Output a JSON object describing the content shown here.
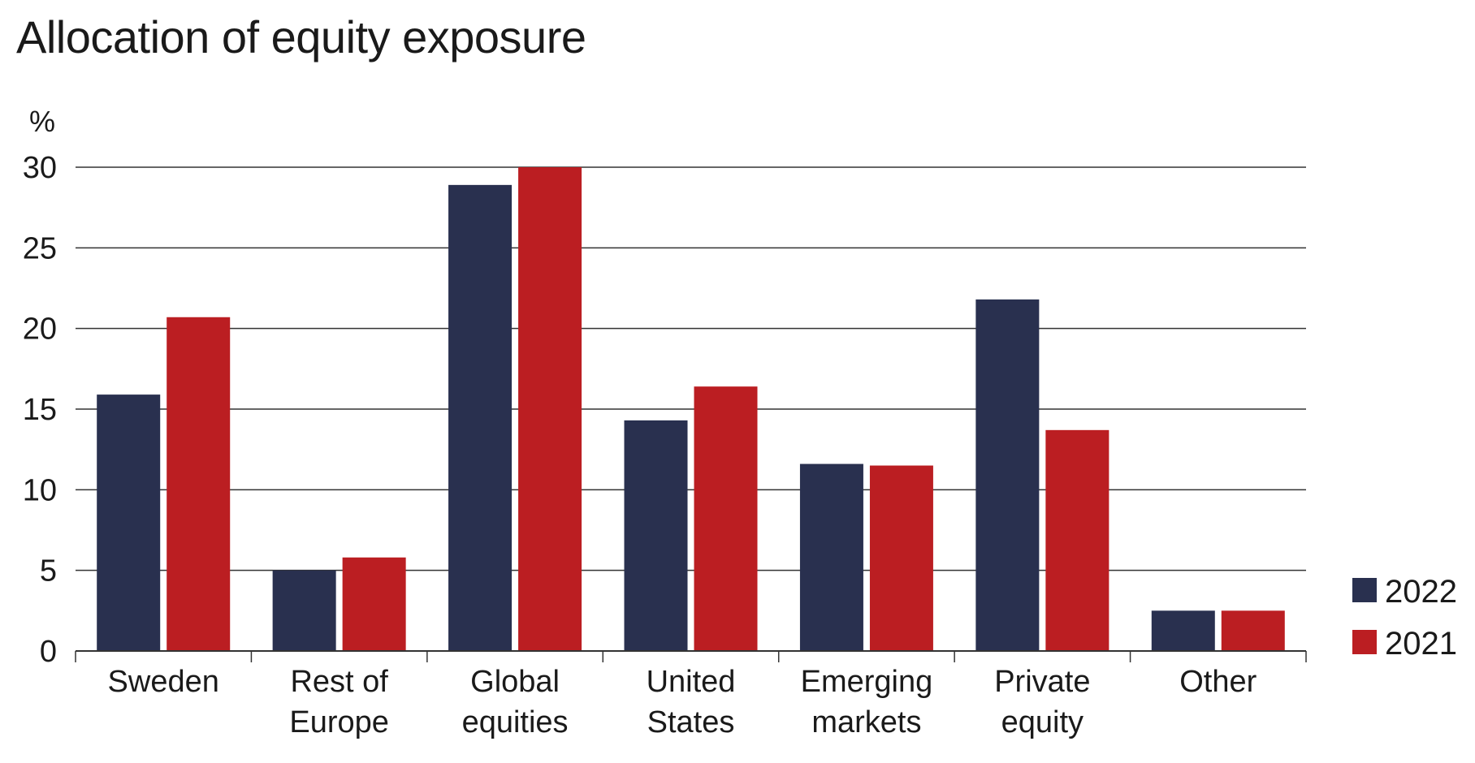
{
  "chart_data": {
    "type": "bar",
    "title": "Allocation of equity exposure",
    "ylabel": "%",
    "xlabel": "",
    "ylim": [
      0,
      30
    ],
    "yticks": [
      0,
      5,
      10,
      15,
      20,
      25,
      30
    ],
    "grid": true,
    "legend_position": "right-bottom",
    "categories": [
      [
        "Sweden"
      ],
      [
        "Rest of",
        "Europe"
      ],
      [
        "Global",
        "equities"
      ],
      [
        "United",
        "States"
      ],
      [
        "Emerging",
        "markets"
      ],
      [
        "Private",
        "equity"
      ],
      [
        "Other"
      ]
    ],
    "series": [
      {
        "name": "2022",
        "color": "#29304f",
        "values": [
          15.9,
          5.0,
          28.9,
          14.3,
          11.6,
          21.8,
          2.5
        ]
      },
      {
        "name": "2021",
        "color": "#bb1e22",
        "values": [
          20.7,
          5.8,
          30.0,
          16.4,
          11.5,
          13.7,
          2.5
        ]
      }
    ]
  }
}
